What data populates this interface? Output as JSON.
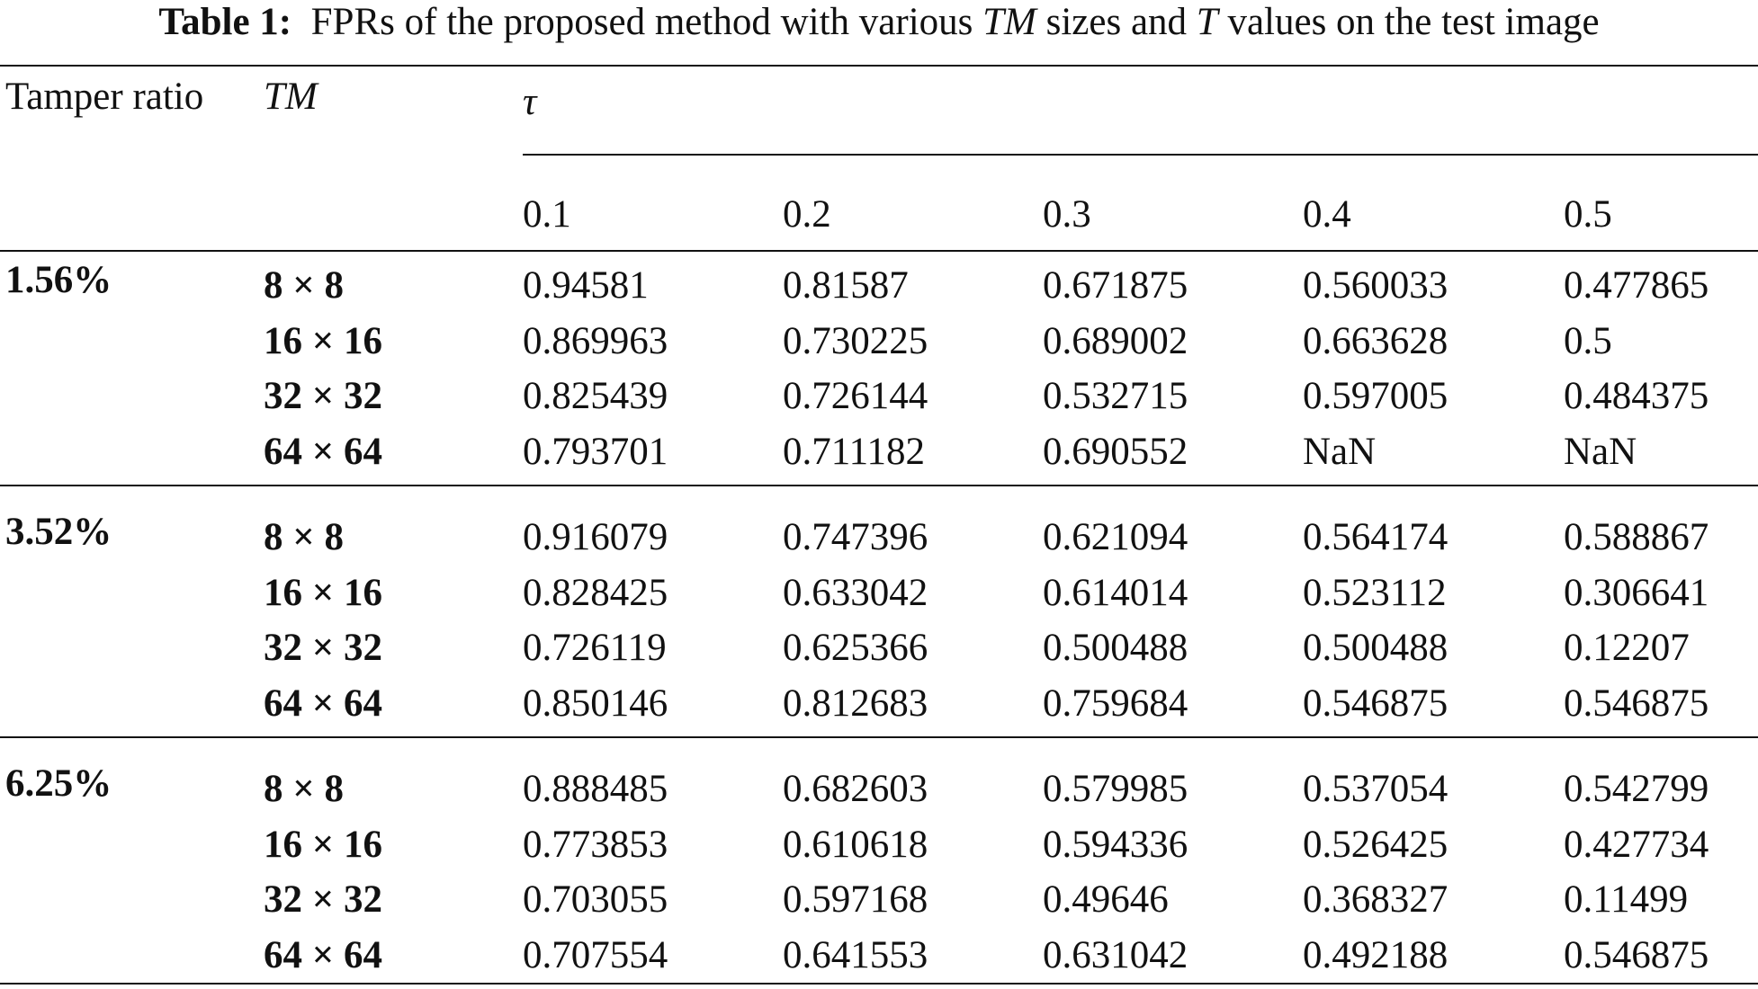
{
  "caption": {
    "label": "Table 1:",
    "parts": [
      "FPRs of the proposed method with various",
      "TM",
      "sizes and",
      "T",
      "values on the test image"
    ]
  },
  "header": {
    "ratio": "Tamper ratio",
    "tm": "TM",
    "tau": "τ",
    "taus": [
      "0.1",
      "0.2",
      "0.3",
      "0.4",
      "0.5"
    ]
  },
  "groups": [
    {
      "ratio": "1.56%",
      "rows": [
        {
          "tm": "8 × 8",
          "values": [
            "0.94581",
            "0.81587",
            "0.671875",
            "0.560033",
            "0.477865"
          ]
        },
        {
          "tm": "16 × 16",
          "values": [
            "0.869963",
            "0.730225",
            "0.689002",
            "0.663628",
            "0.5"
          ]
        },
        {
          "tm": "32 × 32",
          "values": [
            "0.825439",
            "0.726144",
            "0.532715",
            "0.597005",
            "0.484375"
          ]
        },
        {
          "tm": "64 × 64",
          "values": [
            "0.793701",
            "0.711182",
            "0.690552",
            "NaN",
            "NaN"
          ]
        }
      ]
    },
    {
      "ratio": "3.52%",
      "rows": [
        {
          "tm": "8 × 8",
          "values": [
            "0.916079",
            "0.747396",
            "0.621094",
            "0.564174",
            "0.588867"
          ]
        },
        {
          "tm": "16 × 16",
          "values": [
            "0.828425",
            "0.633042",
            "0.614014",
            "0.523112",
            "0.306641"
          ]
        },
        {
          "tm": "32 × 32",
          "values": [
            "0.726119",
            "0.625366",
            "0.500488",
            "0.500488",
            "0.12207"
          ]
        },
        {
          "tm": "64 × 64",
          "values": [
            "0.850146",
            "0.812683",
            "0.759684",
            "0.546875",
            "0.546875"
          ]
        }
      ]
    },
    {
      "ratio": "6.25%",
      "rows": [
        {
          "tm": "8 × 8",
          "values": [
            "0.888485",
            "0.682603",
            "0.579985",
            "0.537054",
            "0.542799"
          ]
        },
        {
          "tm": "16 × 16",
          "values": [
            "0.773853",
            "0.610618",
            "0.594336",
            "0.526425",
            "0.427734"
          ]
        },
        {
          "tm": "32 × 32",
          "values": [
            "0.703055",
            "0.597168",
            "0.49646",
            "0.368327",
            "0.11499"
          ]
        },
        {
          "tm": "64 × 64",
          "values": [
            "0.707554",
            "0.641553",
            "0.631042",
            "0.492188",
            "0.546875"
          ]
        }
      ]
    }
  ]
}
